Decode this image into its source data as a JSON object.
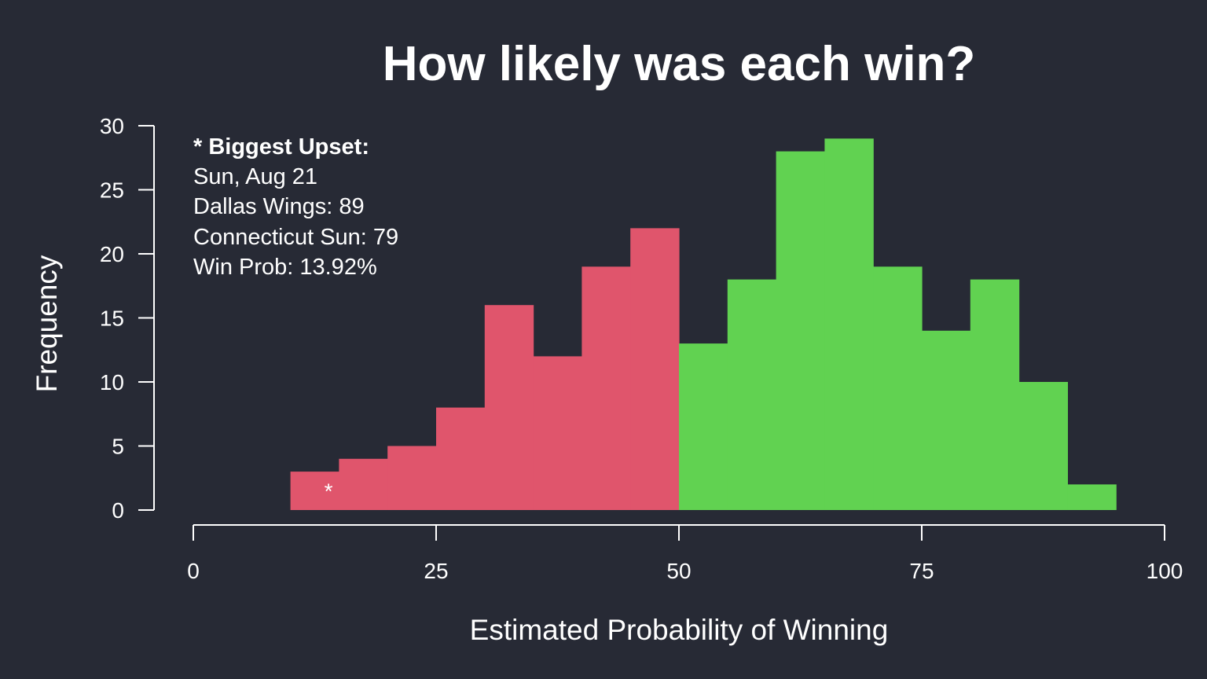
{
  "chart_data": {
    "type": "bar",
    "title": "How likely was each win?",
    "xlabel": "Estimated Probability of Winning",
    "ylabel": "Frequency",
    "xlim": [
      0,
      100
    ],
    "ylim": [
      0,
      30
    ],
    "x_ticks": [
      "0",
      "25",
      "50",
      "75",
      "100"
    ],
    "y_ticks": [
      "0",
      "5",
      "10",
      "15",
      "20",
      "25",
      "30"
    ],
    "bin_width": 5,
    "bins": [
      {
        "start": 10,
        "end": 15,
        "value": 3,
        "color": "#e0556c"
      },
      {
        "start": 15,
        "end": 20,
        "value": 4,
        "color": "#e0556c"
      },
      {
        "start": 20,
        "end": 25,
        "value": 5,
        "color": "#e0556c"
      },
      {
        "start": 25,
        "end": 30,
        "value": 8,
        "color": "#e0556c"
      },
      {
        "start": 30,
        "end": 35,
        "value": 16,
        "color": "#e0556c"
      },
      {
        "start": 35,
        "end": 40,
        "value": 12,
        "color": "#e0556c"
      },
      {
        "start": 40,
        "end": 45,
        "value": 19,
        "color": "#e0556c"
      },
      {
        "start": 45,
        "end": 50,
        "value": 22,
        "color": "#e0556c"
      },
      {
        "start": 50,
        "end": 55,
        "value": 13,
        "color": "#61d251"
      },
      {
        "start": 55,
        "end": 60,
        "value": 18,
        "color": "#61d251"
      },
      {
        "start": 60,
        "end": 65,
        "value": 28,
        "color": "#61d251"
      },
      {
        "start": 65,
        "end": 70,
        "value": 29,
        "color": "#61d251"
      },
      {
        "start": 70,
        "end": 75,
        "value": 19,
        "color": "#61d251"
      },
      {
        "start": 75,
        "end": 80,
        "value": 14,
        "color": "#61d251"
      },
      {
        "start": 80,
        "end": 85,
        "value": 18,
        "color": "#61d251"
      },
      {
        "start": 85,
        "end": 90,
        "value": 10,
        "color": "#61d251"
      },
      {
        "start": 90,
        "end": 95,
        "value": 2,
        "color": "#61d251"
      }
    ],
    "marker": {
      "symbol": "*",
      "x": 13.92,
      "y": 2
    },
    "annotation": {
      "heading": "* Biggest Upset:",
      "lines": [
        "Sun, Aug 21",
        "Dallas Wings: 89",
        "Connecticut Sun: 79",
        "Win Prob: 13.92%"
      ]
    },
    "colors": {
      "background": "#272a35",
      "loss": "#e0556c",
      "win": "#61d251",
      "text": "#ffffff"
    },
    "grid": false
  }
}
